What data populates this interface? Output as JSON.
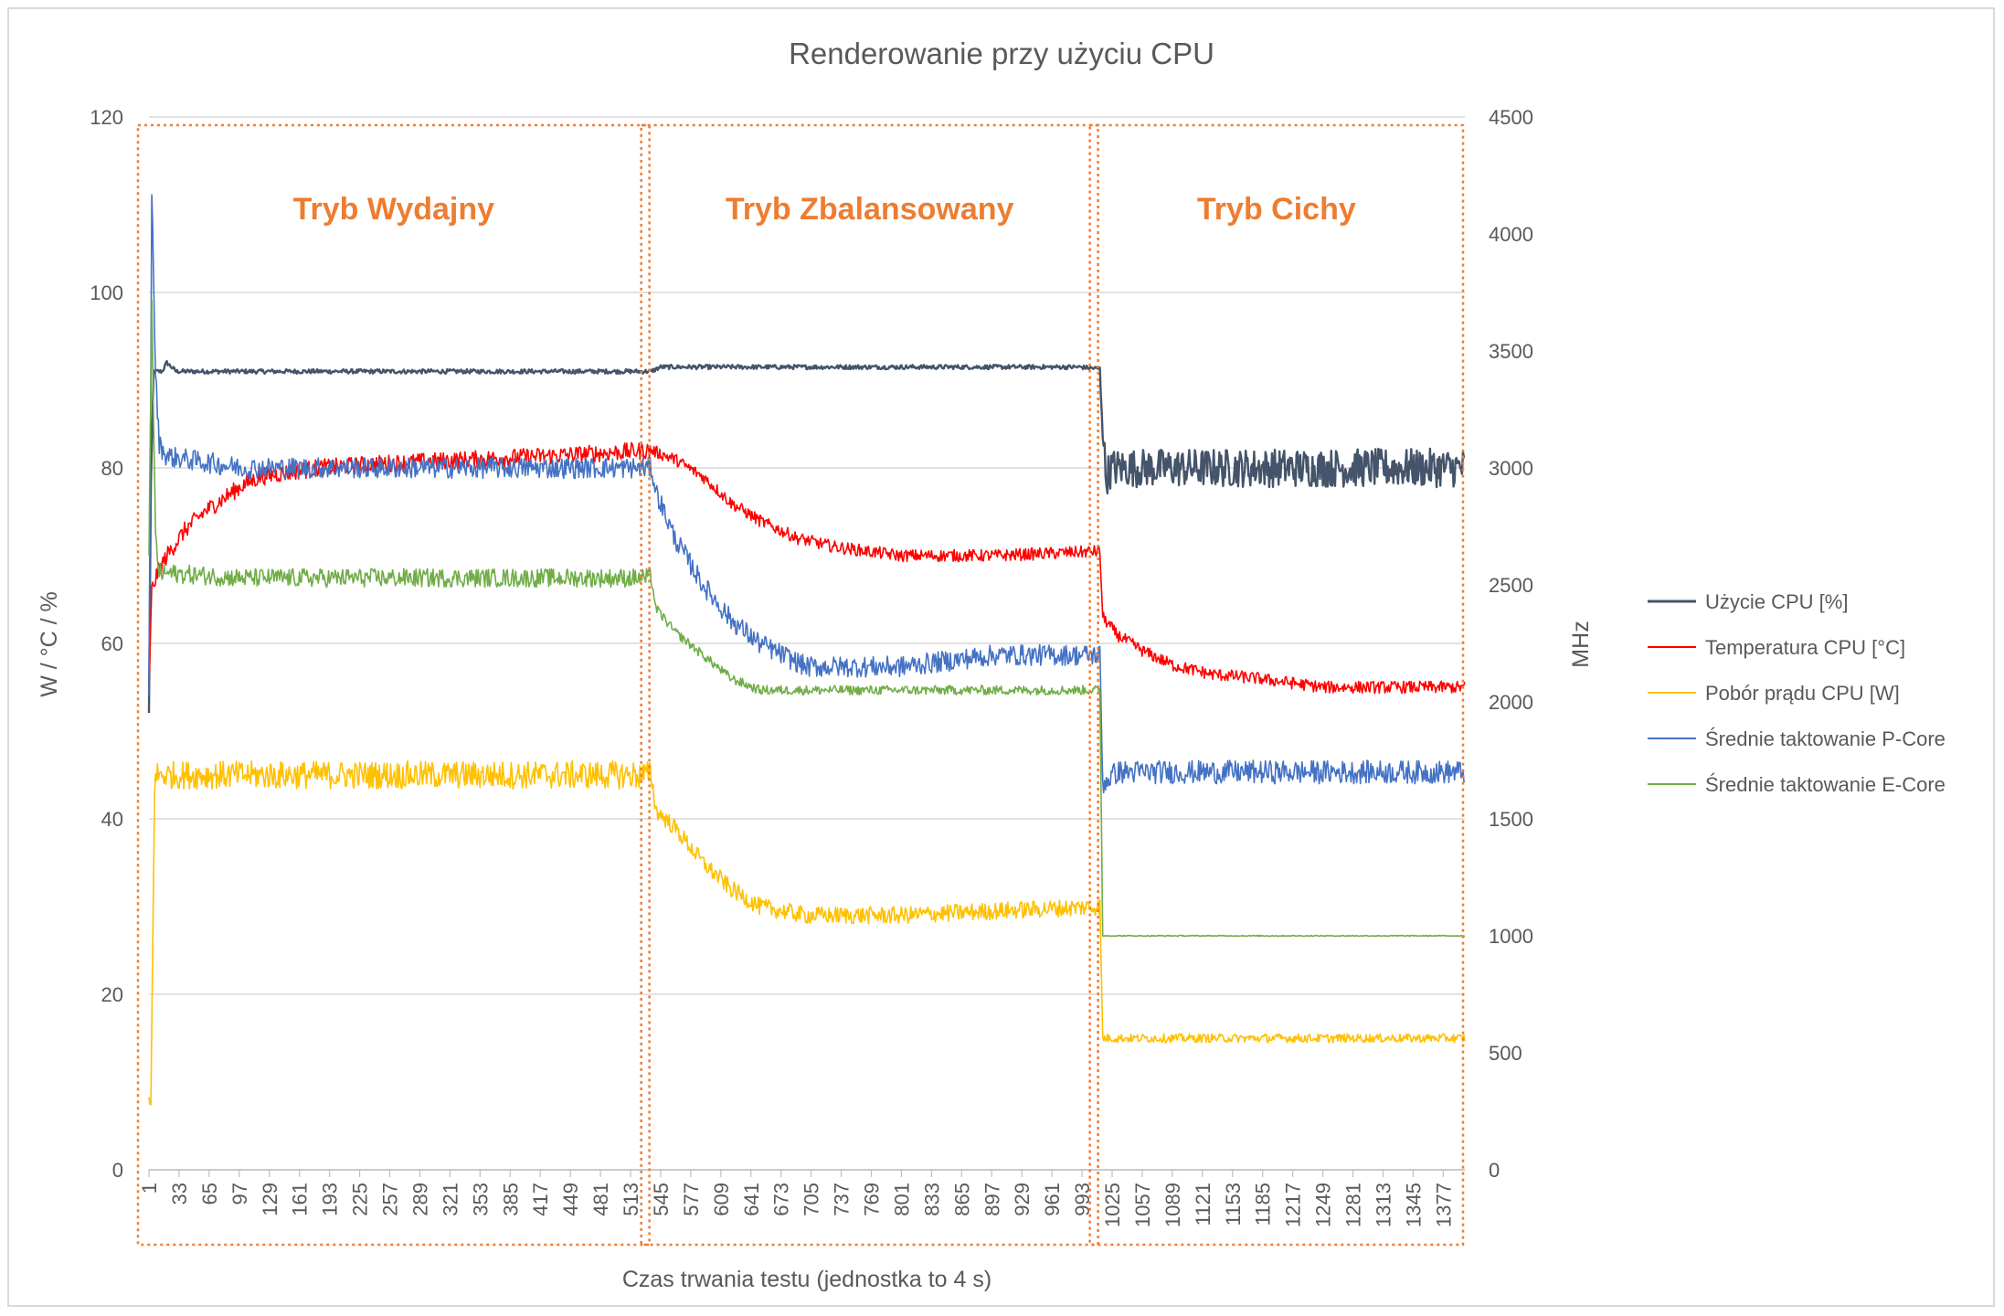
{
  "chart_data": {
    "type": "line",
    "title": "Renderowanie przy użyciu CPU",
    "xlabel": "Czas trwania testu (jednostka to 4 s)",
    "ylabel_left": "W / °C / %",
    "ylabel_right": "MHz",
    "ylim_left": [
      0,
      120
    ],
    "ylim_right": [
      0,
      4500
    ],
    "yticks_left": [
      "0",
      "20",
      "40",
      "60",
      "80",
      "100",
      "120"
    ],
    "yticks_right": [
      "0",
      "500",
      "1000",
      "1500",
      "2000",
      "2500",
      "3000",
      "3500",
      "4000",
      "4500"
    ],
    "xlim": [
      1,
      1400
    ],
    "xticks": [
      "1",
      "33",
      "65",
      "97",
      "129",
      "161",
      "193",
      "225",
      "257",
      "289",
      "321",
      "353",
      "385",
      "417",
      "449",
      "481",
      "513",
      "545",
      "577",
      "609",
      "641",
      "673",
      "705",
      "737",
      "769",
      "801",
      "833",
      "865",
      "897",
      "929",
      "961",
      "993",
      "1025",
      "1057",
      "1089",
      "1121",
      "1153",
      "1185",
      "1217",
      "1249",
      "1281",
      "1313",
      "1345",
      "1377"
    ],
    "grid": true,
    "legend_position": "right",
    "modes": [
      {
        "label": "Tryb Wydajny",
        "x_start": 1,
        "x_end": 535
      },
      {
        "label": "Tryb Zbalansowany",
        "x_start": 536,
        "x_end": 1012
      },
      {
        "label": "Tryb Cichy",
        "x_start": 1013,
        "x_end": 1400
      }
    ],
    "series": [
      {
        "name": "Użycie CPU [%]",
        "color": "#44546a",
        "axis": "left",
        "points": [
          [
            1,
            52
          ],
          [
            3,
            78
          ],
          [
            6,
            91
          ],
          [
            15,
            91
          ],
          [
            20,
            92
          ],
          [
            30,
            91
          ],
          [
            200,
            91
          ],
          [
            400,
            91
          ],
          [
            535,
            91
          ],
          [
            545,
            91.5
          ],
          [
            700,
            91.5
          ],
          [
            850,
            91.5
          ],
          [
            990,
            91.5
          ],
          [
            1012,
            91.3
          ],
          [
            1018,
            79
          ],
          [
            1025,
            80
          ],
          [
            1200,
            80
          ],
          [
            1400,
            80
          ]
        ]
      },
      {
        "name": "Temperatura CPU [°C]",
        "color": "#ff0000",
        "axis": "left",
        "points": [
          [
            1,
            55
          ],
          [
            4,
            66
          ],
          [
            10,
            68
          ],
          [
            20,
            70
          ],
          [
            40,
            73
          ],
          [
            60,
            75
          ],
          [
            80,
            76.5
          ],
          [
            100,
            78
          ],
          [
            120,
            79
          ],
          [
            150,
            79.5
          ],
          [
            180,
            80
          ],
          [
            250,
            80.5
          ],
          [
            350,
            81
          ],
          [
            450,
            81.5
          ],
          [
            535,
            82
          ],
          [
            560,
            81
          ],
          [
            590,
            79
          ],
          [
            620,
            76
          ],
          [
            650,
            74
          ],
          [
            690,
            72
          ],
          [
            730,
            71
          ],
          [
            800,
            70
          ],
          [
            900,
            70
          ],
          [
            1012,
            70.5
          ],
          [
            1015,
            63
          ],
          [
            1030,
            61
          ],
          [
            1060,
            59
          ],
          [
            1090,
            57.5
          ],
          [
            1130,
            56.5
          ],
          [
            1180,
            56
          ],
          [
            1250,
            55
          ],
          [
            1400,
            55
          ]
        ]
      },
      {
        "name": "Pobór prądu CPU [W]",
        "color": "#ffc000",
        "axis": "left",
        "points": [
          [
            1,
            8
          ],
          [
            3,
            7
          ],
          [
            5,
            25
          ],
          [
            7,
            44
          ],
          [
            10,
            45
          ],
          [
            100,
            45
          ],
          [
            200,
            45
          ],
          [
            300,
            45
          ],
          [
            400,
            45
          ],
          [
            535,
            45
          ],
          [
            540,
            41
          ],
          [
            560,
            39
          ],
          [
            590,
            35
          ],
          [
            620,
            32
          ],
          [
            650,
            30
          ],
          [
            700,
            29
          ],
          [
            800,
            29
          ],
          [
            900,
            29.5
          ],
          [
            1012,
            30
          ],
          [
            1015,
            15
          ],
          [
            1100,
            15
          ],
          [
            1200,
            15
          ],
          [
            1400,
            15
          ]
        ]
      },
      {
        "name": "Średnie taktowanie P-Core",
        "color": "#4472c4",
        "axis": "right",
        "points": [
          [
            1,
            2000
          ],
          [
            4,
            4200
          ],
          [
            8,
            3400
          ],
          [
            12,
            3100
          ],
          [
            20,
            3050
          ],
          [
            100,
            3000
          ],
          [
            200,
            3000
          ],
          [
            300,
            3000
          ],
          [
            400,
            3000
          ],
          [
            535,
            3000
          ],
          [
            540,
            2900
          ],
          [
            560,
            2700
          ],
          [
            590,
            2500
          ],
          [
            620,
            2350
          ],
          [
            650,
            2250
          ],
          [
            700,
            2150
          ],
          [
            800,
            2150
          ],
          [
            900,
            2200
          ],
          [
            1012,
            2200
          ],
          [
            1015,
            1650
          ],
          [
            1030,
            1700
          ],
          [
            1200,
            1700
          ],
          [
            1400,
            1700
          ]
        ]
      },
      {
        "name": "Średnie taktowanie E-Core",
        "color": "#70ad47",
        "axis": "right",
        "points": [
          [
            1,
            2600
          ],
          [
            4,
            3700
          ],
          [
            8,
            2700
          ],
          [
            12,
            2550
          ],
          [
            20,
            2550
          ],
          [
            100,
            2530
          ],
          [
            200,
            2530
          ],
          [
            300,
            2530
          ],
          [
            400,
            2530
          ],
          [
            535,
            2530
          ],
          [
            540,
            2400
          ],
          [
            560,
            2300
          ],
          [
            590,
            2200
          ],
          [
            620,
            2100
          ],
          [
            650,
            2050
          ],
          [
            800,
            2050
          ],
          [
            900,
            2050
          ],
          [
            1012,
            2050
          ],
          [
            1015,
            1000
          ],
          [
            1200,
            1000
          ],
          [
            1400,
            1000
          ]
        ]
      }
    ]
  }
}
